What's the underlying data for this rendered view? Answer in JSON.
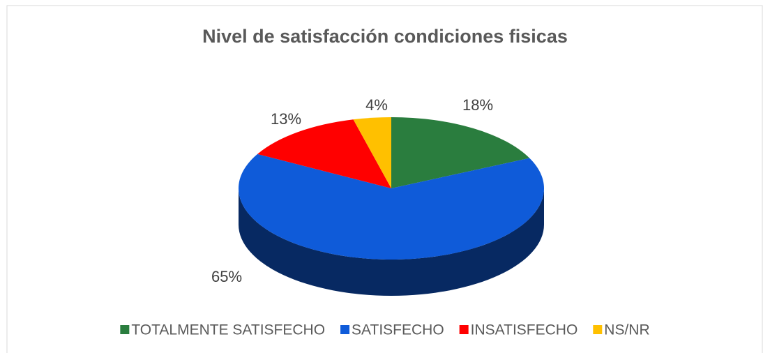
{
  "chart_data": {
    "type": "pie",
    "title": "Nivel de satisfacción condiciones fisicas",
    "categories": [
      "TOTALMENTE SATISFECHO",
      "SATISFECHO",
      "INSATISFECHO",
      "NS/NR"
    ],
    "values": [
      18,
      65,
      13,
      4
    ],
    "value_labels": [
      "18%",
      "65%",
      "13%",
      "4%"
    ],
    "colors": [
      "#2a7d3e",
      "#0f5bd9",
      "#ff0000",
      "#ffc000"
    ],
    "legend": "bottom"
  }
}
